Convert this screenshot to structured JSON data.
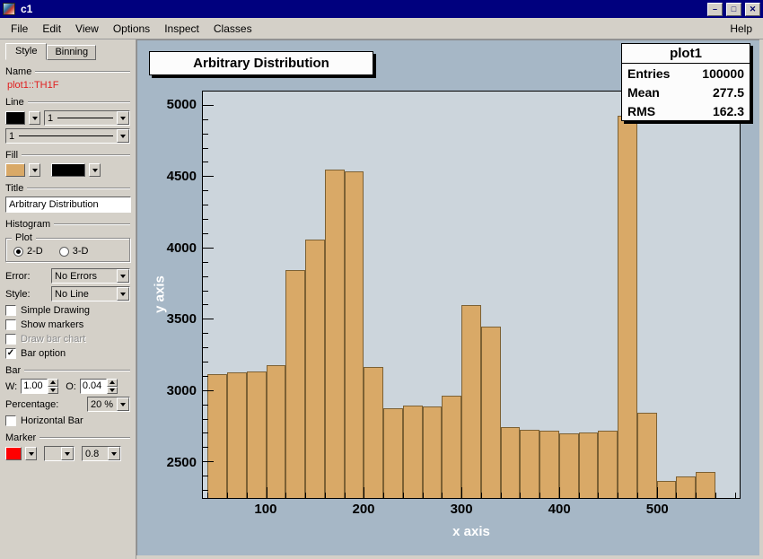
{
  "window": {
    "title": "c1",
    "controls": {
      "minimize": "–",
      "maximize": "□",
      "close": "✕"
    }
  },
  "menu": {
    "items": [
      "File",
      "Edit",
      "View",
      "Options",
      "Inspect",
      "Classes"
    ],
    "help": "Help"
  },
  "editor": {
    "tabs": [
      {
        "label": "Style",
        "active": true
      },
      {
        "label": "Binning",
        "active": false
      }
    ],
    "sections": {
      "name": "Name",
      "line": "Line",
      "fill": "Fill",
      "title": "Title",
      "histogram": "Histogram",
      "bar": "Bar",
      "marker": "Marker"
    },
    "object_name": "plot1::TH1F",
    "line": {
      "color": "#000000",
      "style_label": "1",
      "width_label": "1"
    },
    "fill": {
      "color": "#d9a967",
      "pattern_color": "#000000"
    },
    "title_value": "Arbitrary Distribution",
    "plot_group": {
      "label": "Plot",
      "options": [
        {
          "label": "2-D",
          "selected": true
        },
        {
          "label": "3-D",
          "selected": false
        }
      ]
    },
    "error": {
      "label": "Error:",
      "value": "No Errors"
    },
    "style": {
      "label": "Style:",
      "value": "No Line"
    },
    "checkboxes": [
      {
        "label": "Simple Drawing",
        "checked": false,
        "enabled": true
      },
      {
        "label": "Show markers",
        "checked": false,
        "enabled": true
      },
      {
        "label": "Draw bar chart",
        "checked": false,
        "enabled": false
      },
      {
        "label": "Bar option",
        "checked": true,
        "enabled": true
      }
    ],
    "bar": {
      "w_label": "W:",
      "w_value": "1.00",
      "o_label": "O:",
      "o_value": "0.04",
      "percentage_label": "Percentage:",
      "percentage_value": "20 %",
      "horizontal_label": "Horizontal Bar",
      "horizontal_checked": false
    },
    "marker": {
      "color": "#ff0000",
      "size_value": "0.8"
    }
  },
  "canvas": {
    "stats": {
      "title": "plot1",
      "rows": [
        {
          "label": "Entries",
          "value": "100000"
        },
        {
          "label": "Mean",
          "value": "277.5"
        },
        {
          "label": "RMS",
          "value": "162.3"
        }
      ]
    }
  },
  "chart_data": {
    "type": "bar",
    "title": "Arbitrary Distribution",
    "xlabel": "x axis",
    "ylabel": "y axis",
    "xlim": [
      35,
      585
    ],
    "ylim": [
      2250,
      5100
    ],
    "bin_start": 40,
    "bin_width": 20,
    "values": [
      3120,
      3130,
      3140,
      3180,
      3850,
      4060,
      4550,
      4540,
      3170,
      2880,
      2900,
      2890,
      2970,
      3600,
      3450,
      2750,
      2730,
      2720,
      2700,
      2710,
      2720,
      4930,
      2850,
      2370,
      2400,
      2430
    ],
    "xticks": [
      100,
      200,
      300,
      400,
      500
    ],
    "yticks": [
      2500,
      3000,
      3500,
      4000,
      4500,
      5000
    ],
    "x_minor_step": 20,
    "y_minor_step": 100,
    "bar_color": "#d9a967",
    "bar_border": "#7c6134",
    "grid": false,
    "legend": "none"
  }
}
